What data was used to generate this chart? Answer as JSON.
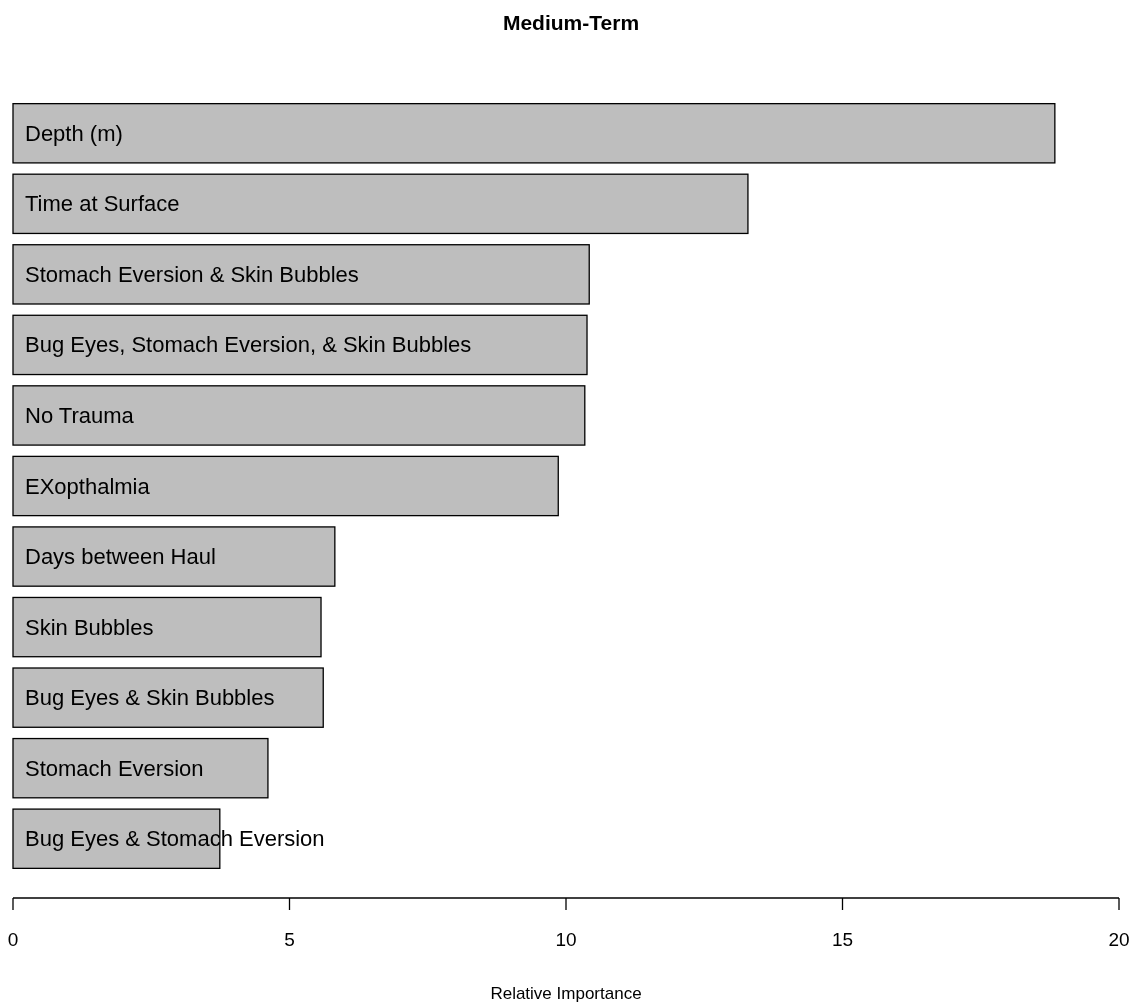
{
  "chart_data": {
    "type": "bar",
    "orientation": "horizontal",
    "title": "Medium-Term",
    "xlabel": "Relative Importance",
    "categories": [
      "Depth (m)",
      "Time at Surface",
      "Stomach Eversion & Skin Bubbles",
      "Bug Eyes, Stomach Eversion, & Skin Bubbles",
      "No Trauma",
      "EXopthalmia",
      "Days between Haul",
      "Skin Bubbles",
      "Bug Eyes & Skin Bubbles",
      "Stomach Eversion",
      "Bug Eyes & Stomach Eversion"
    ],
    "values": [
      18.84,
      13.29,
      10.42,
      10.38,
      10.34,
      9.86,
      5.82,
      5.57,
      5.61,
      4.61,
      3.74
    ],
    "color": "#bebebe",
    "xlim": [
      0,
      20
    ],
    "xticks": [
      0,
      5,
      10,
      15,
      20
    ]
  }
}
